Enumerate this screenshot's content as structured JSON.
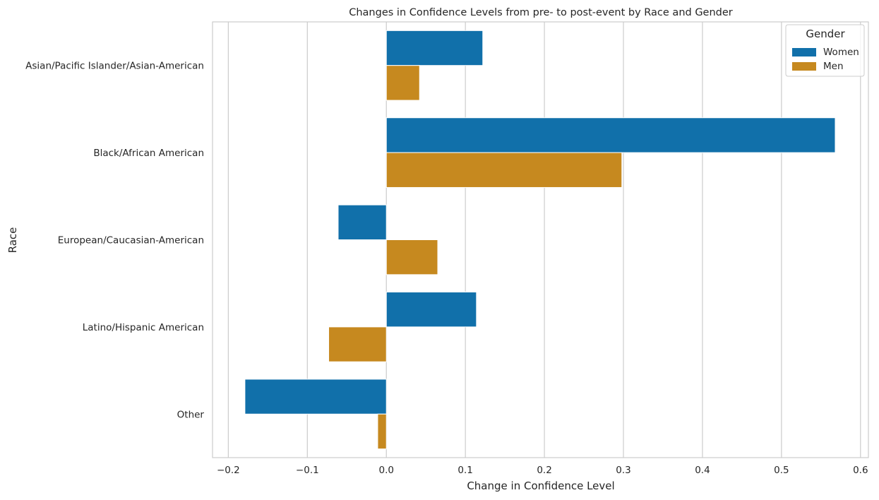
{
  "chart_data": {
    "type": "bar",
    "orientation": "horizontal",
    "title": "Changes in Confidence Levels from pre- to post-event by Race and Gender",
    "xlabel": "Change in Confidence Level",
    "ylabel": "Race",
    "xlim": [
      -0.22,
      0.61
    ],
    "xticks": [
      -0.2,
      -0.1,
      0.0,
      0.1,
      0.2,
      0.3,
      0.4,
      0.5,
      0.6
    ],
    "xtick_labels": [
      "−0.2",
      "−0.1",
      "0.0",
      "0.1",
      "0.2",
      "0.3",
      "0.4",
      "0.5",
      "0.6"
    ],
    "categories": [
      "Asian/Pacific Islander/Asian-American",
      "Black/African American",
      "European/Caucasian-American",
      "Latino/Hispanic American",
      "Other"
    ],
    "series": [
      {
        "name": "Women",
        "color": "#1170aa",
        "values": [
          0.122,
          0.568,
          -0.061,
          0.114,
          -0.179
        ]
      },
      {
        "name": "Men",
        "color": "#c6891f",
        "values": [
          0.042,
          0.298,
          0.065,
          -0.073,
          -0.011
        ]
      }
    ],
    "legend": {
      "title": "Gender",
      "placement": "top-right"
    },
    "grid": "vertical"
  }
}
